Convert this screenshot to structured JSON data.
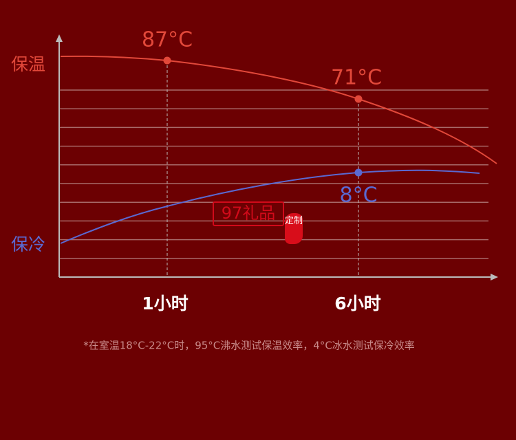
{
  "chart_data": {
    "type": "line",
    "title": "",
    "y_axis_labels": {
      "top": "保温",
      "bottom": "保冷"
    },
    "categories": [
      "1小时",
      "6小时"
    ],
    "series": [
      {
        "name": "保温",
        "color": "#e2483a",
        "points": [
          {
            "x": "1小时",
            "label": "87°C"
          },
          {
            "x": "6小时",
            "label": "71°C"
          }
        ]
      },
      {
        "name": "保冷",
        "color": "#5a69d2",
        "points": [
          {
            "x": "6小时",
            "label": "8°C"
          }
        ]
      }
    ],
    "grid": true
  },
  "footnote": "*在室温18°C-22°C时，95°C沸水测试保温效率，4°C冰水测试保冷效率",
  "watermark": {
    "text": "97礼品",
    "seal": "定制"
  },
  "colors": {
    "background": "#6c0002",
    "hot": "#e2483a",
    "cold": "#5a69d2"
  }
}
